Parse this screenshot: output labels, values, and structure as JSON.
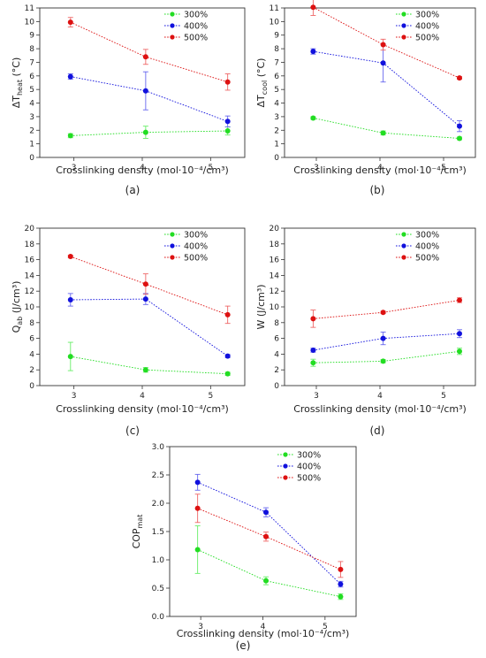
{
  "chart_data": [
    {
      "type": "line",
      "panel_label": "(a)",
      "xlabel": "Crosslinking density (mol·10⁻⁴/cm³)",
      "ylabel": "ΔT",
      "ylabel_sub": "heat",
      "ylabel_unit": " (°C)",
      "xlim": [
        2.5,
        5.5
      ],
      "ylim": [
        0,
        11
      ],
      "xticks": [
        3,
        4,
        5
      ],
      "yticks": [
        0,
        1,
        2,
        3,
        4,
        5,
        6,
        7,
        8,
        9,
        10,
        11
      ],
      "legend_position": "top-right",
      "series": [
        {
          "name": "300%",
          "color": "#22dd22",
          "x": [
            2.95,
            4.05,
            5.25
          ],
          "y": [
            1.6,
            1.85,
            1.95
          ],
          "err": [
            0.15,
            0.45,
            0.3
          ]
        },
        {
          "name": "400%",
          "color": "#1111dd",
          "x": [
            2.95,
            4.05,
            5.25
          ],
          "y": [
            5.95,
            4.9,
            2.65
          ],
          "err": [
            0.2,
            1.4,
            0.4
          ]
        },
        {
          "name": "500%",
          "color": "#dd1111",
          "x": [
            2.95,
            4.05,
            5.25
          ],
          "y": [
            9.95,
            7.4,
            5.55
          ],
          "err": [
            0.35,
            0.55,
            0.6
          ]
        }
      ]
    },
    {
      "type": "line",
      "panel_label": "(b)",
      "xlabel": "Crosslinking density (mol·10⁻⁴/cm³)",
      "ylabel": "ΔT",
      "ylabel_sub": "cool",
      "ylabel_unit": " (°C)",
      "xlim": [
        2.5,
        5.5
      ],
      "ylim": [
        0,
        11
      ],
      "xticks": [
        3,
        4,
        5
      ],
      "yticks": [
        0,
        1,
        2,
        3,
        4,
        5,
        6,
        7,
        8,
        9,
        10,
        11
      ],
      "legend_position": "top-right",
      "series": [
        {
          "name": "300%",
          "color": "#22dd22",
          "x": [
            2.95,
            4.05,
            5.25
          ],
          "y": [
            2.9,
            1.8,
            1.4
          ],
          "err": [
            0.1,
            0.15,
            0.1
          ]
        },
        {
          "name": "400%",
          "color": "#1111dd",
          "x": [
            2.95,
            4.05,
            5.25
          ],
          "y": [
            7.8,
            6.95,
            2.3
          ],
          "err": [
            0.2,
            1.4,
            0.4
          ]
        },
        {
          "name": "500%",
          "color": "#dd1111",
          "x": [
            2.95,
            4.05,
            5.25
          ],
          "y": [
            11.05,
            8.3,
            5.85
          ],
          "err": [
            0.6,
            0.4,
            0.1
          ]
        }
      ]
    },
    {
      "type": "line",
      "panel_label": "(c)",
      "xlabel": "Crosslinking density (mol·10⁻⁴/cm³)",
      "ylabel": "Q",
      "ylabel_sub": "ab",
      "ylabel_unit": " (J/cm³)",
      "xlim": [
        2.5,
        5.5
      ],
      "ylim": [
        0,
        20
      ],
      "xticks": [
        3,
        4,
        5
      ],
      "yticks": [
        0,
        2,
        4,
        6,
        8,
        10,
        12,
        14,
        16,
        18,
        20
      ],
      "legend_position": "top-right",
      "series": [
        {
          "name": "300%",
          "color": "#22dd22",
          "x": [
            2.95,
            4.05,
            5.25
          ],
          "y": [
            3.7,
            2.0,
            1.5
          ],
          "err": [
            1.8,
            0.3,
            0.2
          ]
        },
        {
          "name": "400%",
          "color": "#1111dd",
          "x": [
            2.95,
            4.05,
            5.25
          ],
          "y": [
            10.9,
            11.0,
            3.75
          ],
          "err": [
            0.8,
            0.7,
            0.2
          ]
        },
        {
          "name": "500%",
          "color": "#dd1111",
          "x": [
            2.95,
            4.05,
            5.25
          ],
          "y": [
            16.4,
            12.9,
            9.0
          ],
          "err": [
            0.15,
            1.3,
            1.1
          ]
        }
      ]
    },
    {
      "type": "line",
      "panel_label": "(d)",
      "xlabel": "Crosslinking density (mol·10⁻⁴/cm³)",
      "ylabel": "W",
      "ylabel_sub": "",
      "ylabel_unit": " (J/cm³)",
      "xlim": [
        2.5,
        5.5
      ],
      "ylim": [
        0,
        20
      ],
      "xticks": [
        3,
        4,
        5
      ],
      "yticks": [
        0,
        2,
        4,
        6,
        8,
        10,
        12,
        14,
        16,
        18,
        20
      ],
      "legend_position": "top-right",
      "series": [
        {
          "name": "300%",
          "color": "#22dd22",
          "x": [
            2.95,
            4.05,
            5.25
          ],
          "y": [
            2.9,
            3.1,
            4.35
          ],
          "err": [
            0.45,
            0.2,
            0.4
          ]
        },
        {
          "name": "400%",
          "color": "#1111dd",
          "x": [
            2.95,
            4.05,
            5.25
          ],
          "y": [
            4.5,
            6.0,
            6.6
          ],
          "err": [
            0.25,
            0.8,
            0.5
          ]
        },
        {
          "name": "500%",
          "color": "#dd1111",
          "x": [
            2.95,
            4.05,
            5.25
          ],
          "y": [
            8.5,
            9.3,
            10.85
          ],
          "err": [
            1.1,
            0.15,
            0.3
          ]
        }
      ]
    },
    {
      "type": "line",
      "panel_label": "(e)",
      "xlabel": "Crosslinking density (mol·10⁻⁴/cm³)",
      "ylabel": "COP",
      "ylabel_sub": "mat",
      "ylabel_unit": "",
      "xlim": [
        2.5,
        5.5
      ],
      "ylim": [
        0.0,
        3.0
      ],
      "xticks": [
        3,
        4,
        5
      ],
      "yticks": [
        0.0,
        0.5,
        1.0,
        1.5,
        2.0,
        2.5,
        3.0
      ],
      "legend_position": "top-right",
      "series": [
        {
          "name": "300%",
          "color": "#22dd22",
          "x": [
            2.95,
            4.05,
            5.25
          ],
          "y": [
            1.18,
            0.63,
            0.35
          ],
          "err": [
            0.42,
            0.07,
            0.05
          ]
        },
        {
          "name": "400%",
          "color": "#1111dd",
          "x": [
            2.95,
            4.05,
            5.25
          ],
          "y": [
            2.37,
            1.84,
            0.57
          ],
          "err": [
            0.14,
            0.08,
            0.05
          ]
        },
        {
          "name": "500%",
          "color": "#dd1111",
          "x": [
            2.95,
            4.05,
            5.25
          ],
          "y": [
            1.91,
            1.41,
            0.83
          ],
          "err": [
            0.25,
            0.08,
            0.14
          ]
        }
      ]
    }
  ]
}
